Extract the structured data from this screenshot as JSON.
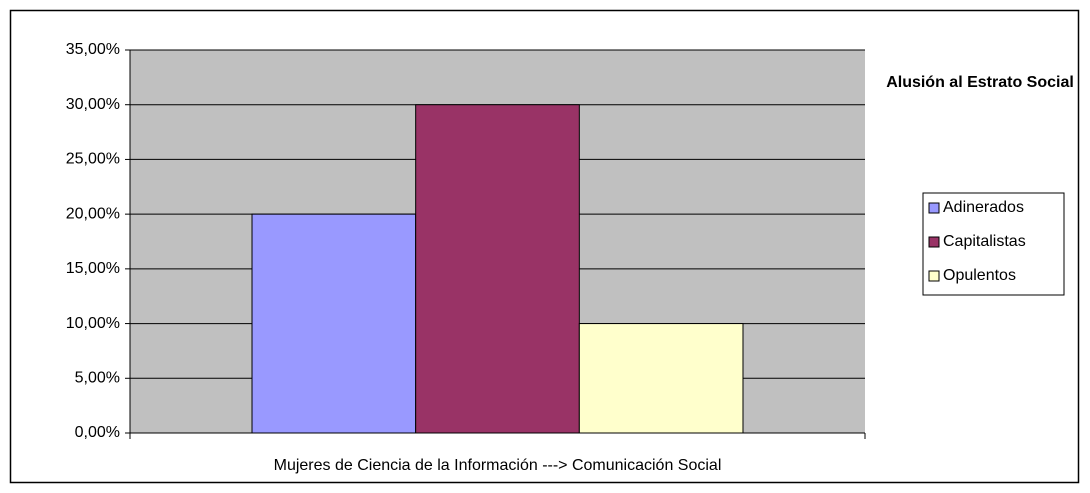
{
  "chart_data": {
    "type": "bar",
    "categories": [
      "Mujeres de Ciencia de la Información ---> Comunicación Social"
    ],
    "series": [
      {
        "name": "Adinerados",
        "color": "#9999ff",
        "values": [
          20
        ]
      },
      {
        "name": "Capitalistas",
        "color": "#993366",
        "values": [
          30
        ]
      },
      {
        "name": "Opulentos",
        "color": "#ffffcc",
        "values": [
          10
        ]
      }
    ],
    "ylim": [
      0,
      35
    ],
    "yticks": [
      {
        "value": 0,
        "label": "0,00%"
      },
      {
        "value": 5,
        "label": "5,00%"
      },
      {
        "value": 10,
        "label": "10,00%"
      },
      {
        "value": 15,
        "label": "15,00%"
      },
      {
        "value": 20,
        "label": "20,00%"
      },
      {
        "value": 25,
        "label": "25,00%"
      },
      {
        "value": 30,
        "label": "30,00%"
      },
      {
        "value": 35,
        "label": "35,00%"
      }
    ],
    "grid": true,
    "legend_title": "Alusión al Estrato Social",
    "legend_position": "right",
    "plot_background": "#c0c0c0"
  }
}
